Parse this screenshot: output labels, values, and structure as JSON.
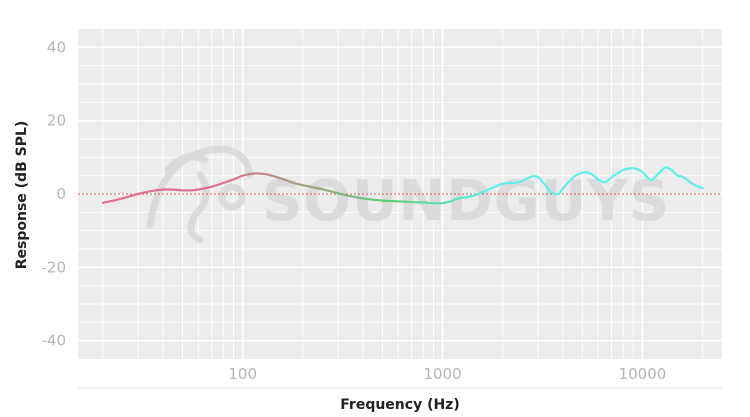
{
  "chart_data": {
    "type": "line",
    "xlabel": "Frequency (Hz)",
    "ylabel": "Response (dB SPL)",
    "xscale": "log",
    "xlim": [
      15,
      25000
    ],
    "ylim": [
      -45,
      45
    ],
    "xticks": [
      100,
      1000,
      10000
    ],
    "xtick_labels": [
      "100",
      "1000",
      "10000"
    ],
    "yticks": [
      40,
      20,
      0,
      -20,
      -40
    ],
    "ytick_labels": [
      "40",
      "20",
      "0",
      "-20",
      "-40"
    ],
    "grid": true,
    "reference_line": 0,
    "colors": {
      "plot_background": "#ececec",
      "grid": "#ffffff",
      "reference_line": "#e05050",
      "curve_low": "#e0708f",
      "curve_mid": "#5ccf7a",
      "curve_high": "#5ff0e8"
    },
    "watermark": "SOUNDGUYS",
    "series": [
      {
        "x": [
          20,
          25,
          30,
          35,
          40,
          45,
          50,
          55,
          60,
          70,
          80,
          90,
          100,
          110,
          120,
          130,
          140,
          160,
          180,
          200,
          250,
          300,
          350,
          400,
          500,
          600,
          700,
          800,
          900,
          1000,
          1100,
          1200,
          1400,
          1600,
          1800,
          2000,
          2200,
          2400,
          2600,
          2800,
          3000,
          3200,
          3500,
          3800,
          4000,
          4500,
          5000,
          5500,
          6000,
          6500,
          7000,
          8000,
          9000,
          10000,
          11000,
          12000,
          13000,
          14000,
          15000,
          16000,
          18000,
          20000
        ],
        "y": [
          -2.4,
          -1.2,
          0,
          0.8,
          1.2,
          1.2,
          1.0,
          1.0,
          1.2,
          2.0,
          3.0,
          4.0,
          5.0,
          5.5,
          5.6,
          5.4,
          5.0,
          4.0,
          3.0,
          2.4,
          1.3,
          0.2,
          -0.6,
          -1.2,
          -1.8,
          -2.0,
          -2.2,
          -2.3,
          -2.5,
          -2.5,
          -2.0,
          -1.2,
          -0.6,
          0.6,
          1.8,
          2.8,
          3.0,
          3.2,
          4.0,
          4.8,
          4.6,
          3.0,
          0.5,
          0.0,
          1.5,
          4.5,
          5.8,
          5.6,
          4.0,
          3.2,
          4.5,
          6.5,
          7.0,
          6.0,
          3.8,
          5.5,
          7.2,
          6.5,
          5.0,
          4.6,
          2.6,
          1.6
        ]
      }
    ]
  }
}
